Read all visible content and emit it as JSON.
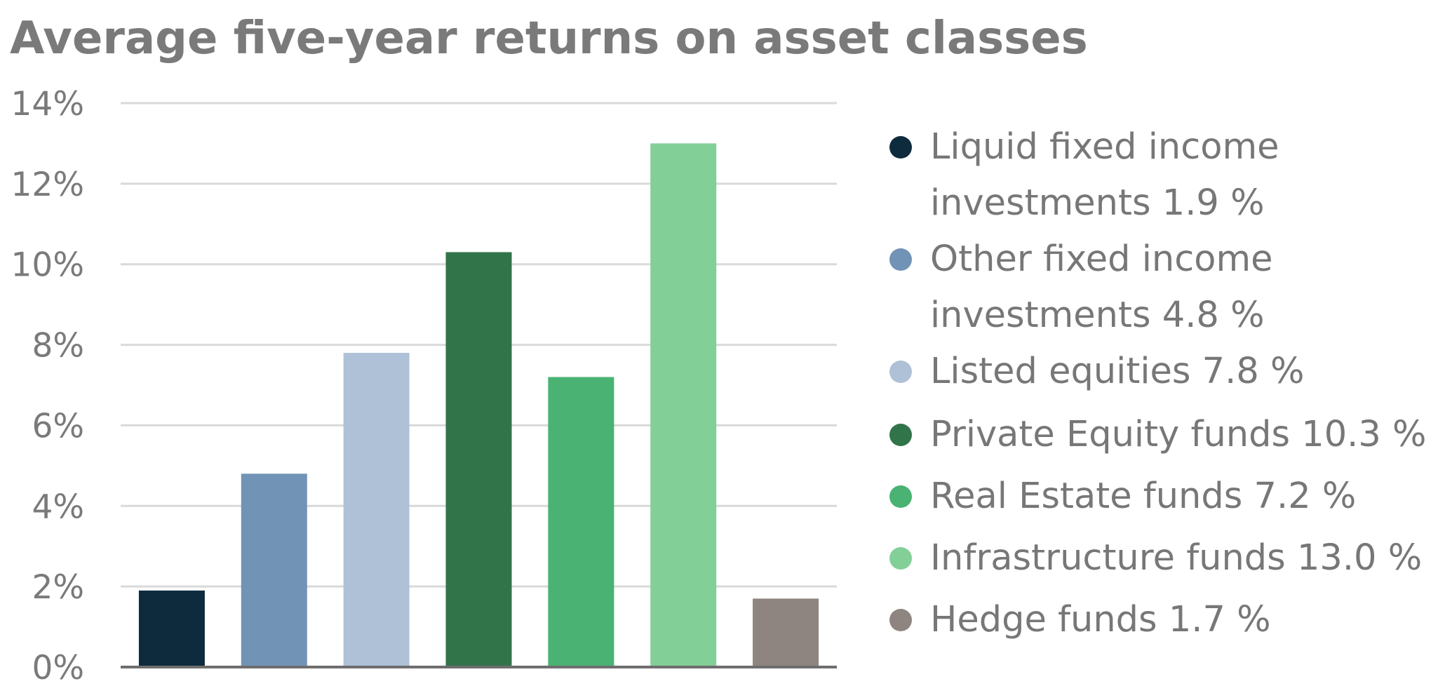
{
  "chart_data": {
    "type": "bar",
    "title": "Average five-year returns on asset classes",
    "xlabel": "",
    "ylabel": "",
    "ylim": [
      0,
      14
    ],
    "yticks": [
      0,
      2,
      4,
      6,
      8,
      10,
      12,
      14
    ],
    "ytick_labels": [
      "0%",
      "2%",
      "4%",
      "6%",
      "8%",
      "10%",
      "12%",
      "14%"
    ],
    "grid": true,
    "legend_position": "right",
    "categories": [
      "Liquid fixed income investments",
      "Other fixed income investments",
      "Listed equities",
      "Private Equity funds",
      "Real Estate funds",
      "Infrastructure funds",
      "Hedge funds"
    ],
    "values": [
      1.9,
      4.8,
      7.8,
      10.3,
      7.2,
      13.0,
      1.7
    ],
    "colors": [
      "#0e2b3e",
      "#7193b6",
      "#aec1d7",
      "#31744a",
      "#4ab272",
      "#83cf98",
      "#8e8580"
    ],
    "legend_labels": [
      "Liquid fixed income\n investments 1.9 %",
      "Other fixed income\n investments 4.8 %",
      "Listed equities 7.8 %",
      "Private Equity funds 10.3 %",
      "Real Estate funds 7.2 %",
      "Infrastructure funds 13.0 %",
      "Hedge funds 1.7 %"
    ]
  }
}
